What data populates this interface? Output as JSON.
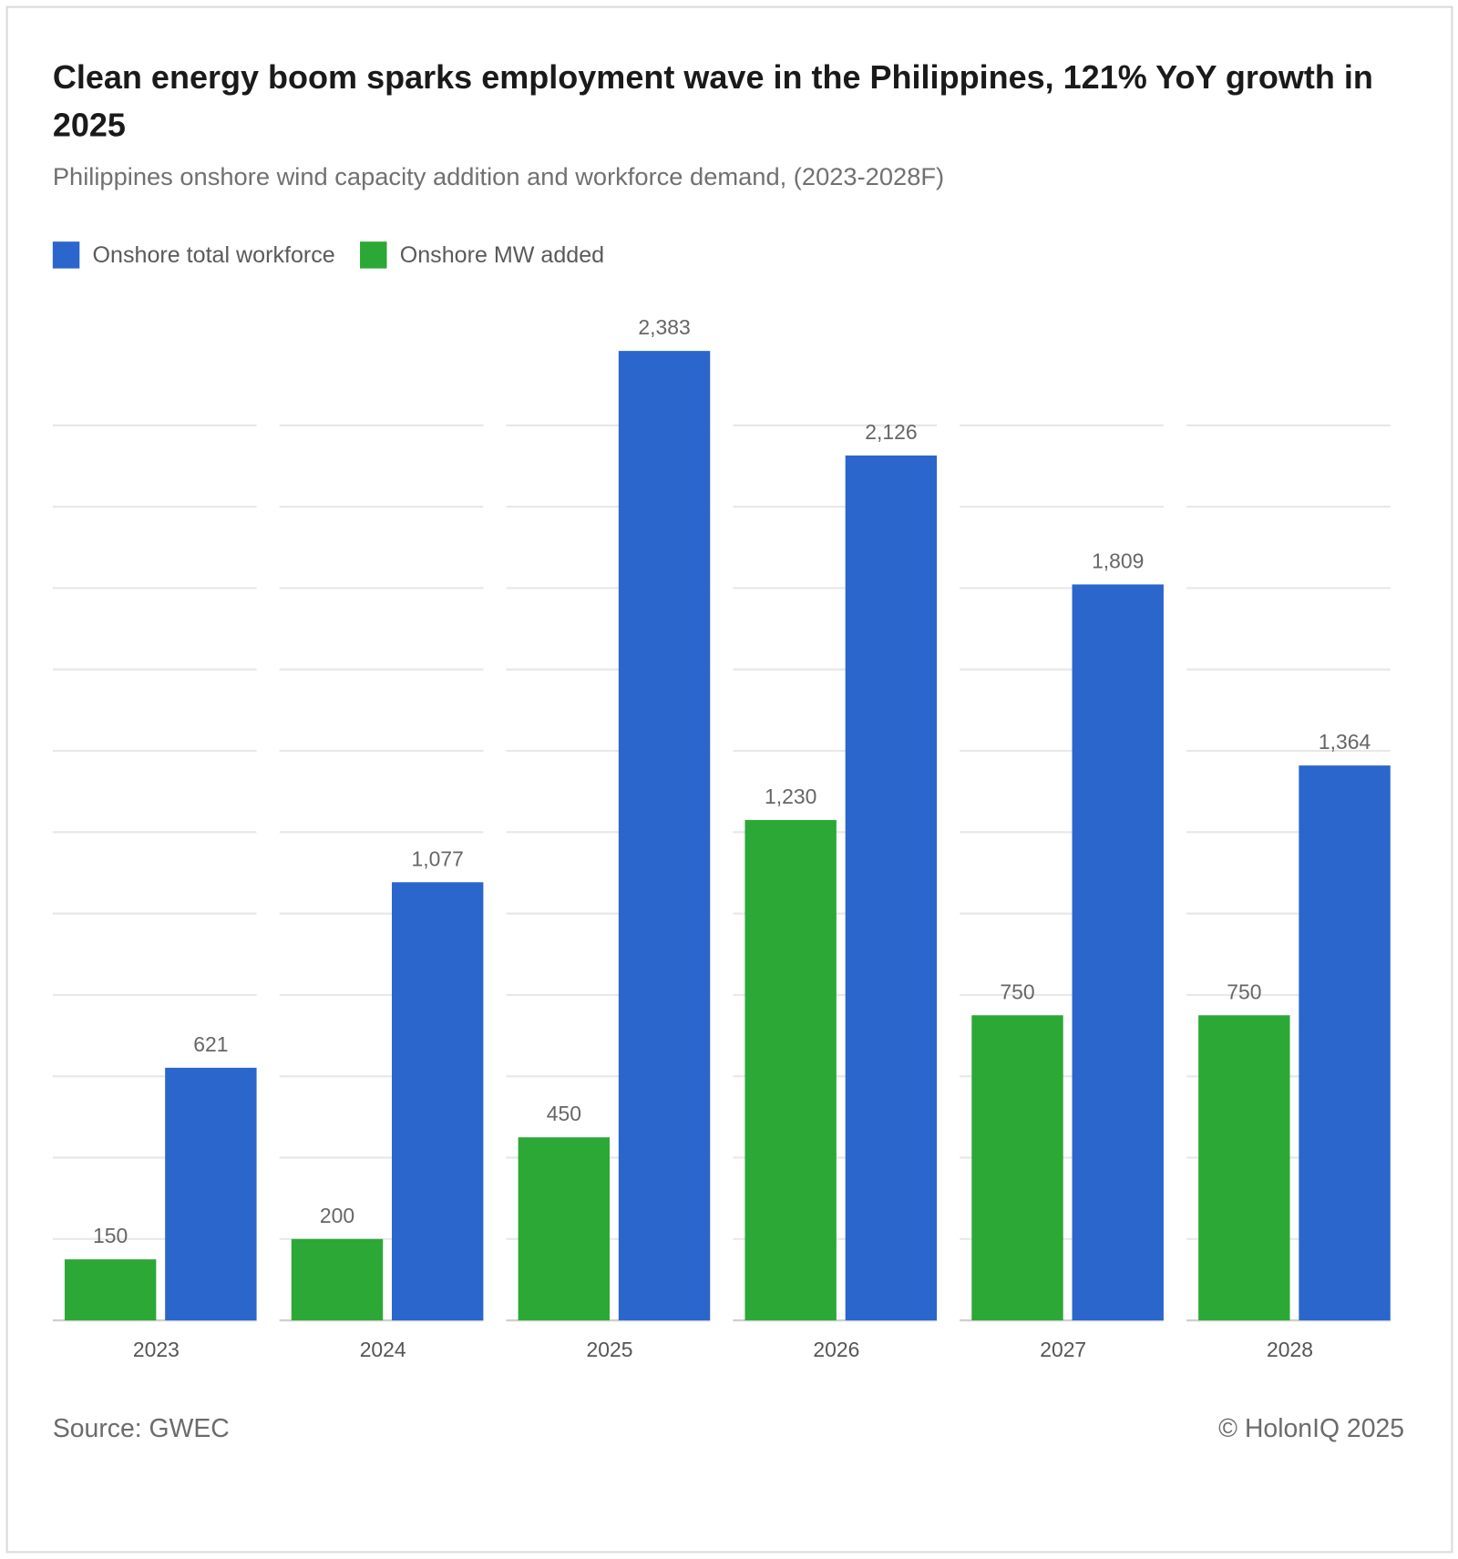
{
  "chart_data": {
    "type": "bar",
    "title": "Clean energy boom sparks employment wave in the Philippines, 121% YoY growth in 2025",
    "subtitle": "Philippines onshore wind capacity addition and workforce demand, (2023-2028F)",
    "categories": [
      "2023",
      "2024",
      "2025",
      "2026",
      "2027",
      "2028"
    ],
    "series": [
      {
        "name": "Onshore total workforce",
        "color": "#2b66cc",
        "values": [
          621,
          1077,
          2383,
          2126,
          1809,
          1364
        ],
        "value_labels": [
          "621",
          "1,077",
          "2,383",
          "2,126",
          "1,809",
          "1,364"
        ]
      },
      {
        "name": "Onshore MW added",
        "color": "#2ca836",
        "values": [
          150,
          200,
          450,
          1230,
          750,
          750
        ],
        "value_labels": [
          "150",
          "200",
          "450",
          "1,230",
          "750",
          "750"
        ]
      }
    ],
    "ylim": [
      0,
      2400
    ],
    "yticks": [
      0,
      200,
      400,
      600,
      800,
      1000,
      1200,
      1400,
      1600,
      1800,
      2000,
      2200
    ],
    "grid": true,
    "legend": "top-left",
    "source": "Source: GWEC",
    "credit": "© HolonIQ 2025"
  }
}
